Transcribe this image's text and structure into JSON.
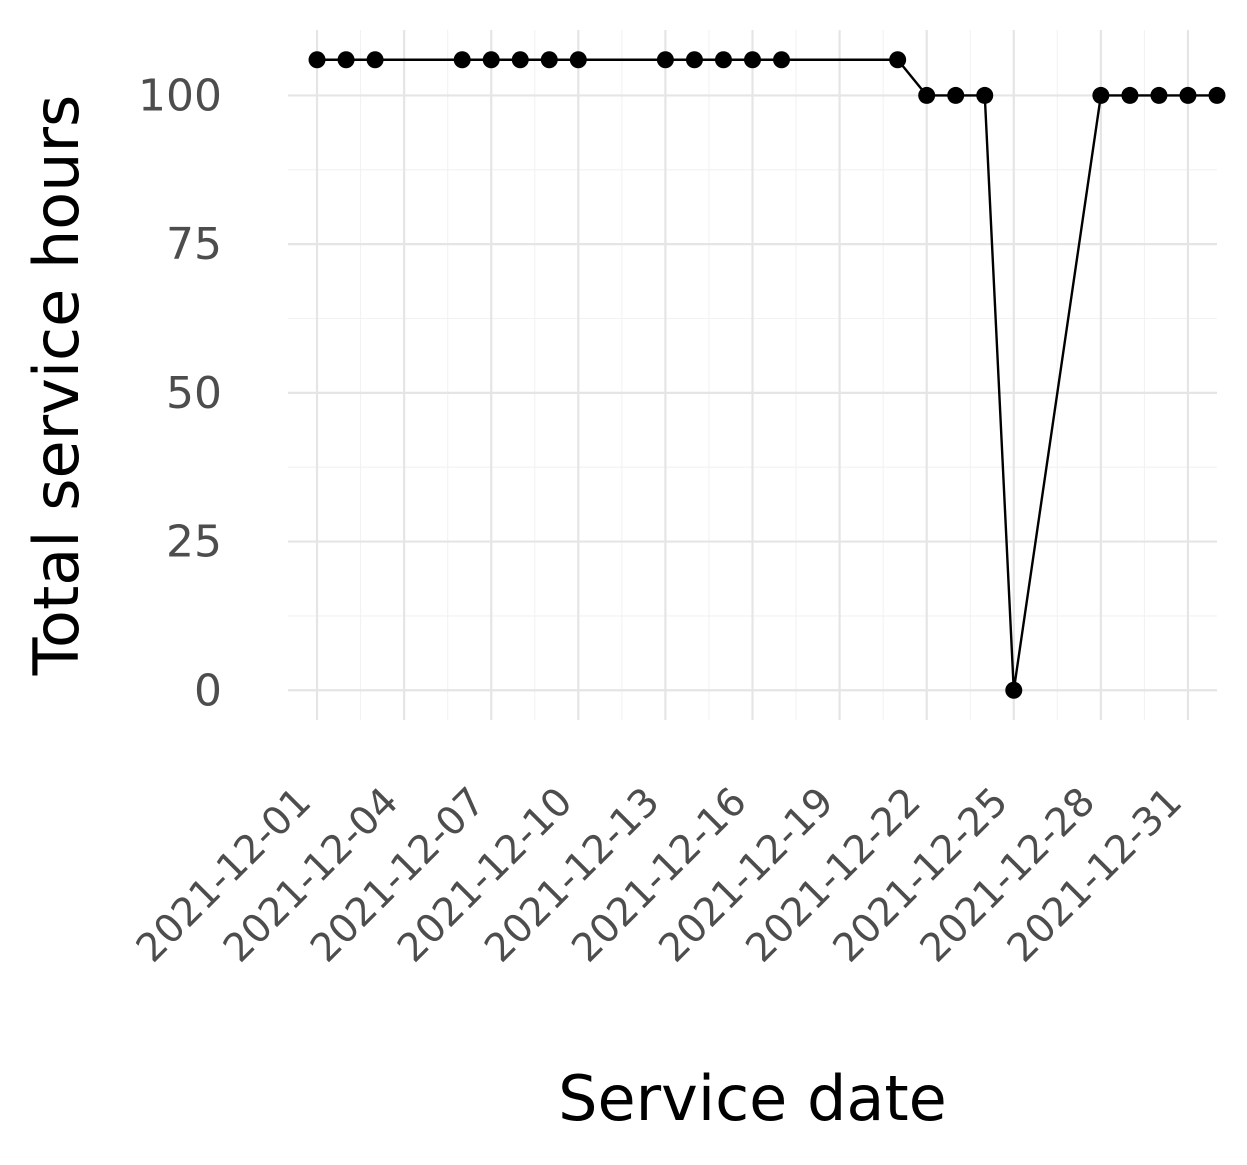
{
  "chart_data": {
    "type": "line",
    "title": "",
    "xlabel": "Service date",
    "ylabel": "Total service hours",
    "x_tick_labels": [
      "2021-12-01",
      "2021-12-04",
      "2021-12-07",
      "2021-12-10",
      "2021-12-13",
      "2021-12-16",
      "2021-12-19",
      "2021-12-22",
      "2021-12-25",
      "2021-12-28",
      "2021-12-31"
    ],
    "y_tick_labels": [
      "0",
      "25",
      "50",
      "75",
      "100"
    ],
    "xlim": [
      "2021-11-30",
      "2022-01-01"
    ],
    "ylim": [
      -5,
      111
    ],
    "grid": true,
    "legend": "none",
    "series": [
      {
        "color": "#000000",
        "points": [
          {
            "x": "2021-12-01",
            "y": 106
          },
          {
            "x": "2021-12-02",
            "y": 106
          },
          {
            "x": "2021-12-03",
            "y": 106
          },
          {
            "x": "2021-12-06",
            "y": 106
          },
          {
            "x": "2021-12-07",
            "y": 106
          },
          {
            "x": "2021-12-08",
            "y": 106
          },
          {
            "x": "2021-12-09",
            "y": 106
          },
          {
            "x": "2021-12-10",
            "y": 106
          },
          {
            "x": "2021-12-13",
            "y": 106
          },
          {
            "x": "2021-12-14",
            "y": 106
          },
          {
            "x": "2021-12-15",
            "y": 106
          },
          {
            "x": "2021-12-16",
            "y": 106
          },
          {
            "x": "2021-12-17",
            "y": 106
          },
          {
            "x": "2021-12-21",
            "y": 106
          },
          {
            "x": "2021-12-22",
            "y": 100
          },
          {
            "x": "2021-12-23",
            "y": 100
          },
          {
            "x": "2021-12-24",
            "y": 100
          },
          {
            "x": "2021-12-25",
            "y": 0
          },
          {
            "x": "2021-12-28",
            "y": 100
          },
          {
            "x": "2021-12-29",
            "y": 100
          },
          {
            "x": "2021-12-30",
            "y": 100
          },
          {
            "x": "2021-12-31",
            "y": 100
          },
          {
            "x": "2022-01-01",
            "y": 100
          }
        ]
      }
    ]
  }
}
